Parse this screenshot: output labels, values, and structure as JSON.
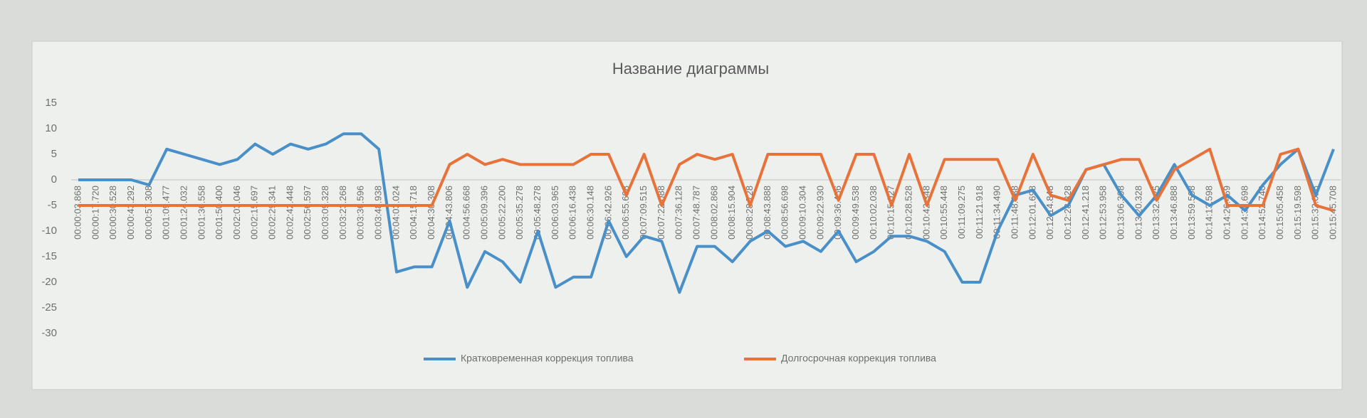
{
  "chart_data": {
    "type": "line",
    "title": "Название диаграммы",
    "categories": [
      "00:00:03.868",
      "00:00:17.720",
      "00:00:30.528",
      "00:00:43.292",
      "00:00:57.308",
      "00:01:09.477",
      "00:01:24.032",
      "00:01:36.558",
      "00:01:50.400",
      "00:02:03.046",
      "00:02:15.697",
      "00:02:29.341",
      "00:02:42.448",
      "00:02:56.597",
      "00:03:09.328",
      "00:03:23.268",
      "00:03:36.596",
      "00:03:48.938",
      "00:04:03.024",
      "00:04:15.718",
      "00:04:30.308",
      "00:04:43.806",
      "00:04:56.668",
      "00:05:09.396",
      "00:05:22.200",
      "00:05:35.278",
      "00:05:48.278",
      "00:06:03.965",
      "00:06:16.438",
      "00:06:30.148",
      "00:06:42.926",
      "00:06:55.698",
      "00:07:09.515",
      "00:07:22.088",
      "00:07:36.128",
      "00:07:48.787",
      "00:08:02.868",
      "00:08:15.904",
      "00:08:28.728",
      "00:08:43.888",
      "00:08:56.698",
      "00:09:10.304",
      "00:09:22.930",
      "00:09:36.456",
      "00:09:49.538",
      "00:10:02.038",
      "00:10:15.027",
      "00:10:28.528",
      "00:10:42.348",
      "00:10:55.448",
      "00:11:09.275",
      "00:11:21.918",
      "00:11:34.490",
      "00:11:48.638",
      "00:12:01.698",
      "00:12:14.848",
      "00:12:28.328",
      "00:12:41.218",
      "00:12:53.958",
      "00:13:06.398",
      "00:13:20.328",
      "00:13:32.825",
      "00:13:46.888",
      "00:13:59.598",
      "00:14:13.598",
      "00:14:26.459",
      "00:14:38.698",
      "00:14:52.740",
      "00:15:05.458",
      "00:15:19.598",
      "00:15:32.028",
      "00:15:45.708"
    ],
    "series": [
      {
        "name": "Кратковременная коррекция топлива",
        "color": "#4a90c8",
        "values": [
          0,
          0,
          0,
          0,
          -1,
          6,
          5,
          4,
          3,
          4,
          7,
          5,
          7,
          6,
          7,
          9,
          9,
          6,
          -18,
          -17,
          -17,
          -8,
          -21,
          -14,
          -16,
          -20,
          -10,
          -21,
          -19,
          -19,
          -8,
          -15,
          -11,
          -12,
          -22,
          -13,
          -13,
          -16,
          -12,
          -10,
          -13,
          -12,
          -14,
          -10,
          -16,
          -14,
          -11,
          -11,
          -12,
          -14,
          -20,
          -20,
          -10,
          -3,
          -2,
          -7,
          -5,
          2,
          3,
          -3,
          -7,
          -3,
          3,
          -3,
          -5,
          -3,
          -6,
          -1,
          3,
          6,
          -3,
          6
        ]
      },
      {
        "name": "Долгосрочная коррекция топлива",
        "color": "#e8733a",
        "values": [
          -5,
          -5,
          -5,
          -5,
          -5,
          -5,
          -5,
          -5,
          -5,
          -5,
          -5,
          -5,
          -5,
          -5,
          -5,
          -5,
          -5,
          -5,
          -5,
          -5,
          -5,
          3,
          5,
          3,
          4,
          3,
          3,
          3,
          3,
          5,
          5,
          -3,
          5,
          -5,
          3,
          5,
          4,
          5,
          -5,
          5,
          5,
          5,
          5,
          -4,
          5,
          5,
          -5,
          5,
          -5,
          4,
          4,
          4,
          4,
          -4,
          5,
          -3,
          -4,
          2,
          3,
          4,
          4,
          -4,
          2,
          4,
          6,
          -5,
          -5,
          -5,
          5,
          6,
          -5,
          -6
        ]
      }
    ],
    "ylim": [
      -30,
      15
    ],
    "yticks": [
      15,
      10,
      5,
      0,
      -5,
      -10,
      -15,
      -20,
      -25,
      -30
    ],
    "grid": false,
    "legend": "bottom"
  }
}
